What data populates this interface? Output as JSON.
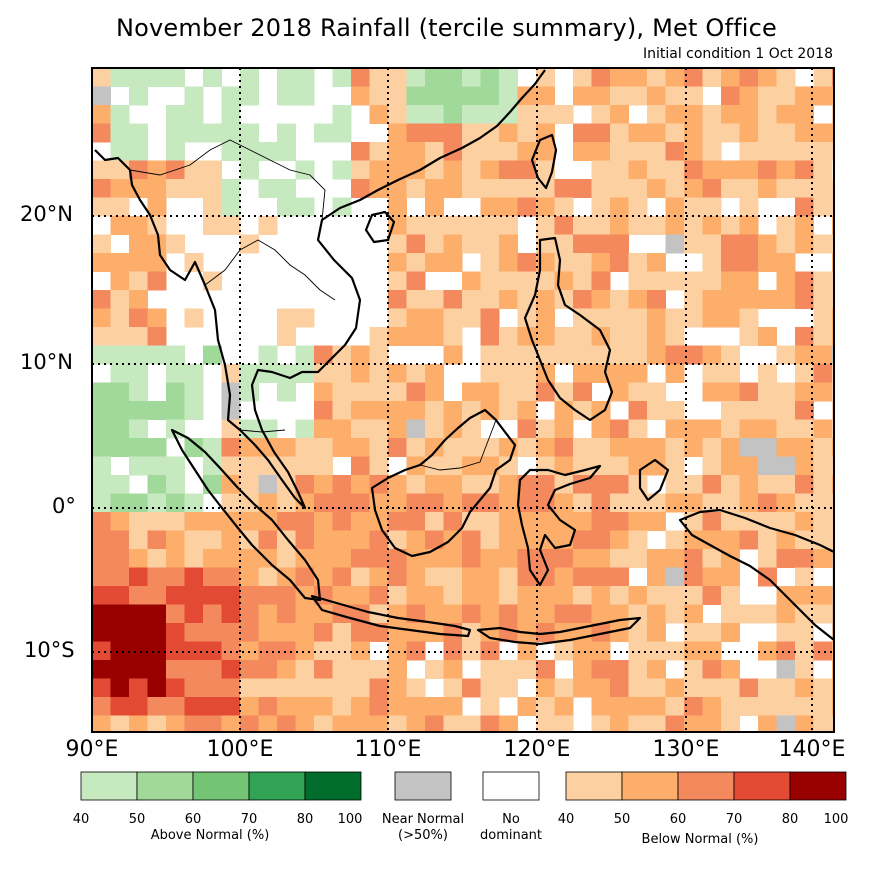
{
  "title": "November 2018 Rainfall (tercile summary), Met Office",
  "subtitle": "Initial condition 1 Oct 2018",
  "axes": {
    "lat_labels": [
      "20°N",
      "10°N",
      "0°",
      "10°S"
    ],
    "lon_labels": [
      "90°E",
      "100°E",
      "110°E",
      "120°E",
      "130°E",
      "140°E"
    ]
  },
  "colors": {
    "above": [
      "#c7e9c0",
      "#a1d99b",
      "#74c476",
      "#31a354",
      "#006d2c"
    ],
    "below": [
      "#fdd0a2",
      "#fdae6b",
      "#f4895e",
      "#e34a33",
      "#990000"
    ],
    "near_normal": "#c3c3c3",
    "no_dominant": "#ffffff"
  },
  "legend": {
    "above_ticks": [
      "40",
      "50",
      "60",
      "70",
      "80",
      "100"
    ],
    "above_label": "Above Normal (%)",
    "near_normal_label_1": "Near Normal",
    "near_normal_label_2": "(>50%)",
    "no_dominant_label_1": "No",
    "no_dominant_label_2": "dominant",
    "below_ticks": [
      "40",
      "50",
      "60",
      "70",
      "80",
      "100"
    ],
    "below_label": "Below Normal (%)"
  }
}
